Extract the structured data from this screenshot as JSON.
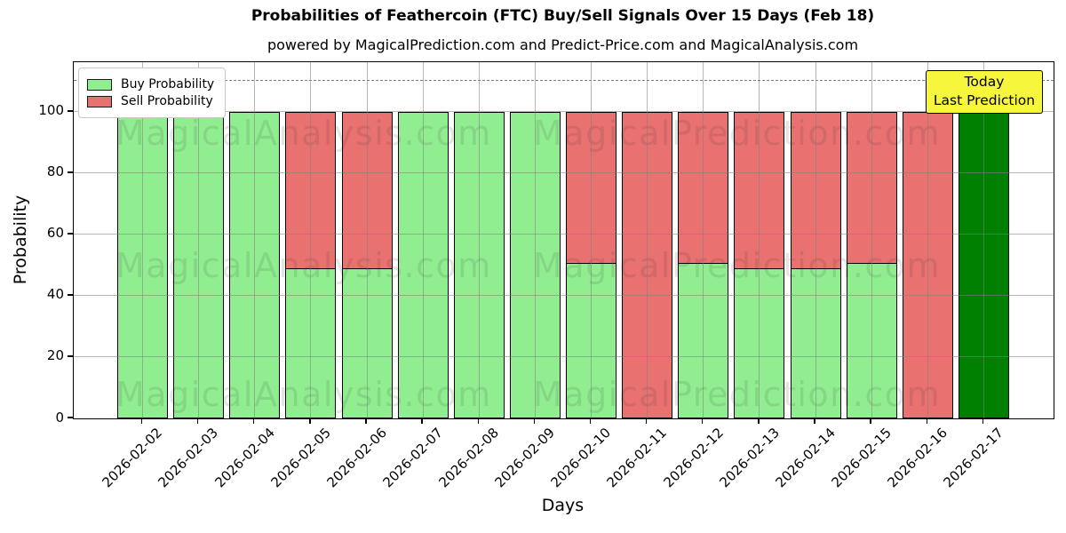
{
  "chart_data": {
    "type": "bar",
    "stacked": true,
    "title": "Probabilities of Feathercoin (FTC) Buy/Sell Signals Over 15 Days (Feb 18)",
    "subtitle": "powered by MagicalPrediction.com and Predict-Price.com and MagicalAnalysis.com",
    "xlabel": "Days",
    "ylabel": "Probability",
    "categories": [
      "2026-02-02",
      "2026-02-03",
      "2026-02-04",
      "2026-02-05",
      "2026-02-06",
      "2026-02-07",
      "2026-02-08",
      "2026-02-09",
      "2026-02-10",
      "2026-02-11",
      "2026-02-12",
      "2026-02-13",
      "2026-02-14",
      "2026-02-15",
      "2026-02-16",
      "2026-02-17"
    ],
    "series": [
      {
        "name": "Buy Probability",
        "color": "#90EE90",
        "values": [
          100,
          100,
          100,
          49,
          49,
          100,
          100,
          100,
          51,
          0,
          51,
          49,
          49,
          51,
          0,
          100
        ]
      },
      {
        "name": "Sell Probability",
        "color": "#E97170",
        "values": [
          0,
          0,
          0,
          51,
          51,
          0,
          0,
          0,
          49,
          100,
          49,
          51,
          51,
          49,
          100,
          0
        ]
      }
    ],
    "today_index": 15,
    "today_color": "#008000",
    "yticks": [
      "0",
      "20",
      "40",
      "60",
      "80",
      "100"
    ],
    "ylim": [
      0,
      116.2
    ],
    "dashed_line_y": 110,
    "grid": true,
    "legend_position": "upper left"
  },
  "annotation": {
    "line1": "Today",
    "line2": "Last Prediction",
    "bg_color": "#F6F63C"
  },
  "watermarks": {
    "left": "MagicalAnalysis.com",
    "right": "MagicalPrediction.com",
    "rows": 3
  },
  "colors": {
    "bar_edge": "#000000",
    "grid": "rgba(128,128,128,0.55)",
    "dashed_line": "#7d7d7d",
    "background": "#ffffff"
  }
}
